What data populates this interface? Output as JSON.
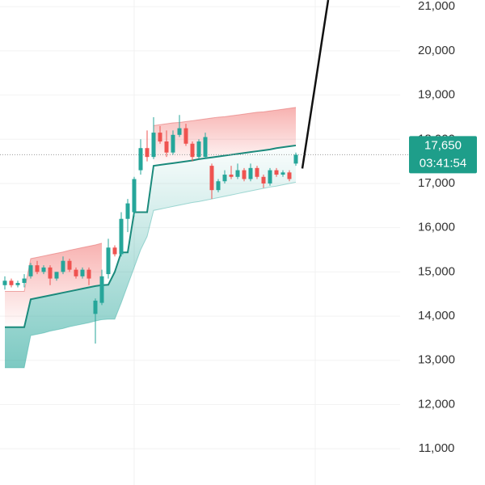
{
  "chart_data": {
    "type": "candlestick",
    "categories": [
      null,
      null,
      null,
      null,
      null,
      null,
      null,
      null,
      null,
      null,
      null,
      null,
      null,
      null,
      null,
      null,
      null,
      null,
      null,
      null,
      null,
      null,
      null,
      null,
      null,
      null,
      null,
      null,
      null,
      null,
      null,
      null,
      null,
      null,
      null,
      null,
      null,
      null,
      null,
      null,
      null,
      null,
      null,
      null,
      null,
      null,
      null,
      null,
      null,
      null,
      null
    ],
    "open": [
      14700,
      14800,
      14700,
      14750,
      14900,
      15150,
      15000,
      15100,
      14850,
      15000,
      15250,
      15050,
      14900,
      15050,
      14050,
      14300,
      14950,
      15550,
      15400,
      16200,
      16350,
      17300,
      17800,
      17600,
      18150,
      17950,
      17700,
      18100,
      18250,
      17900,
      17600,
      17600,
      17400,
      16850,
      17050,
      17200,
      17150,
      17300,
      17100,
      17350,
      17150,
      17000,
      17300,
      17200,
      17250,
      17450,
      null,
      null,
      null,
      null,
      null
    ],
    "high": [
      14900,
      14850,
      14800,
      14950,
      15200,
      15250,
      15150,
      15150,
      15000,
      15350,
      15300,
      15100,
      15100,
      15100,
      14400,
      15050,
      15750,
      15600,
      16350,
      16650,
      17150,
      18000,
      18200,
      18500,
      18300,
      18200,
      18200,
      18550,
      18350,
      17950,
      18000,
      18150,
      17450,
      17100,
      17300,
      17400,
      17450,
      17350,
      17450,
      17400,
      17200,
      17350,
      17350,
      17300,
      17300,
      17700,
      null,
      null,
      null,
      null,
      null
    ],
    "low": [
      14600,
      14650,
      14650,
      14650,
      14850,
      14950,
      14950,
      14700,
      14800,
      14950,
      15000,
      14850,
      14850,
      14700,
      13380,
      14250,
      14850,
      15350,
      15350,
      15900,
      16250,
      17200,
      17500,
      17550,
      17900,
      17600,
      17650,
      18050,
      17850,
      17500,
      17550,
      17550,
      16650,
      16800,
      17000,
      17100,
      17100,
      17050,
      17050,
      17100,
      16900,
      16950,
      17150,
      17150,
      17050,
      17400,
      null,
      null,
      null,
      null,
      null
    ],
    "close": [
      14800,
      14700,
      14750,
      14850,
      15150,
      15000,
      15100,
      14850,
      15000,
      15250,
      15050,
      14900,
      15050,
      14850,
      14350,
      14900,
      15550,
      15400,
      16200,
      16550,
      17100,
      17800,
      17600,
      18150,
      17950,
      17700,
      18100,
      18250,
      17900,
      17600,
      17950,
      18050,
      16850,
      17050,
      17200,
      17150,
      17300,
      17100,
      17350,
      17150,
      17000,
      17300,
      17200,
      17250,
      17100,
      17650,
      null,
      null,
      null,
      null,
      null
    ],
    "up_color": "#26a69a",
    "down_color": "#ef5350",
    "band_upper": [
      14560,
      14560,
      14560,
      14560,
      15300,
      15330,
      15360,
      15390,
      15420,
      15450,
      15490,
      15520,
      15550,
      15580,
      15610,
      15650,
      null,
      null,
      null,
      null,
      null,
      null,
      null,
      18310,
      18330,
      18350,
      18370,
      18380,
      18400,
      18420,
      18440,
      18460,
      18480,
      18500,
      18510,
      18530,
      18550,
      18570,
      18590,
      18610,
      18620,
      18640,
      18660,
      18680,
      18700,
      18720,
      null,
      null,
      null,
      null,
      null
    ],
    "trend": [
      13750,
      13750,
      13750,
      13750,
      14380,
      14410,
      14440,
      14470,
      14500,
      14530,
      14560,
      14590,
      14620,
      14650,
      14680,
      14700,
      14710,
      15000,
      15440,
      15440,
      16350,
      16350,
      16350,
      17400,
      17420,
      17440,
      17460,
      17480,
      17500,
      17520,
      17550,
      17570,
      17590,
      17610,
      17630,
      17650,
      17670,
      17690,
      17710,
      17730,
      17750,
      17770,
      17800,
      17820,
      17840,
      17860,
      null,
      null,
      null,
      null,
      null
    ],
    "band_lower": [
      12830,
      12830,
      12830,
      12830,
      13560,
      13590,
      13620,
      13660,
      13690,
      13720,
      13760,
      13790,
      13820,
      13850,
      13890,
      13920,
      13930,
      13930,
      14300,
      14700,
      15100,
      15500,
      15800,
      16390,
      16420,
      16450,
      16480,
      16510,
      16540,
      16570,
      16590,
      16620,
      16650,
      16680,
      16710,
      16740,
      16770,
      16800,
      16830,
      16860,
      16890,
      16920,
      16940,
      16970,
      17000,
      17030,
      null,
      null,
      null,
      null,
      null
    ],
    "projection": [
      null,
      null,
      null,
      null,
      null,
      null,
      null,
      null,
      null,
      null,
      null,
      null,
      null,
      null,
      null,
      null,
      null,
      null,
      null,
      null,
      null,
      null,
      null,
      null,
      null,
      null,
      null,
      null,
      null,
      null,
      null,
      null,
      null,
      null,
      null,
      null,
      null,
      null,
      null,
      null,
      null,
      null,
      null,
      null,
      null,
      null,
      17340,
      18290,
      19240,
      20200,
      21150
    ],
    "band_upper_color": "#e57373",
    "trend_color": "#1b8a7c",
    "band_lower_color": "#26a69a",
    "projection_color": "#111111",
    "ylim": [
      10180,
      21150
    ],
    "yticks": [
      {
        "value": 11000,
        "label": "11,000"
      },
      {
        "value": 12000,
        "label": "12,000"
      },
      {
        "value": 13000,
        "label": "13,000"
      },
      {
        "value": 14000,
        "label": "14,000"
      },
      {
        "value": 15000,
        "label": "15,000"
      },
      {
        "value": 16000,
        "label": "16,000"
      },
      {
        "value": 17000,
        "label": "17,000"
      },
      {
        "value": 18000,
        "label": "18,000"
      },
      {
        "value": 19000,
        "label": "19,000"
      },
      {
        "value": 20000,
        "label": "20,000"
      },
      {
        "value": 21000,
        "label": "21,000"
      }
    ],
    "grid": true,
    "last_price": {
      "value": 17650,
      "label": "17,650"
    },
    "countdown": "03:41:54",
    "last_price_color": "#1e9e8a"
  }
}
